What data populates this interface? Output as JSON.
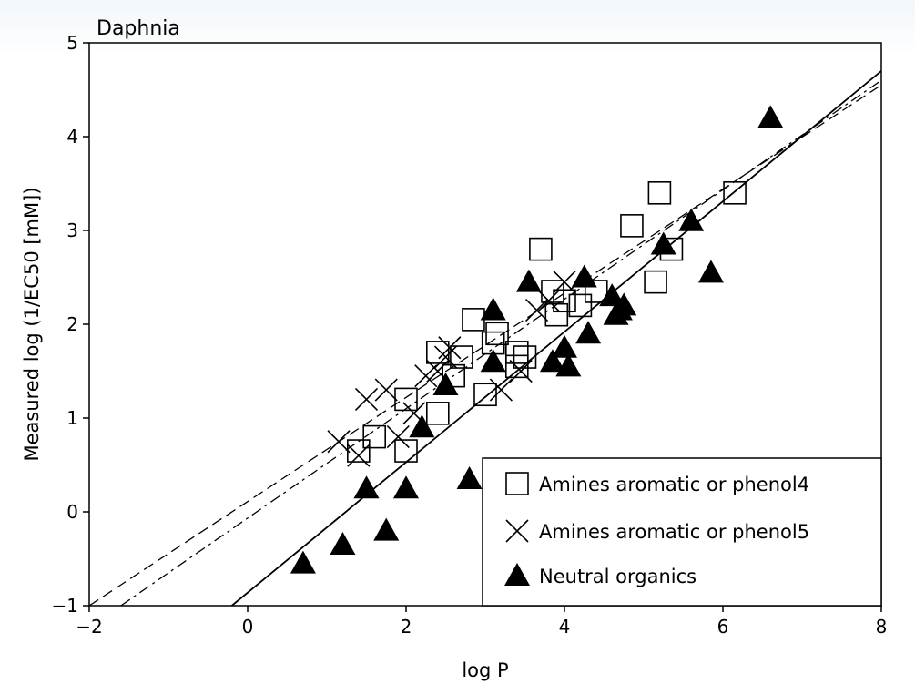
{
  "chart_data": {
    "type": "scatter",
    "title": "Daphnia",
    "xlabel": "log P",
    "ylabel": "Measured log (1/EC50 [mM])",
    "xlim": [
      -2,
      8
    ],
    "ylim": [
      -1,
      5
    ],
    "xticks": [
      "−2",
      "0",
      "2",
      "4",
      "6",
      "8"
    ],
    "yticks": [
      "−1",
      "0",
      "1",
      "2",
      "3",
      "4",
      "5"
    ],
    "xtick_values": [
      -2,
      0,
      2,
      4,
      6,
      8
    ],
    "ytick_values": [
      -1,
      0,
      1,
      2,
      3,
      4,
      5
    ],
    "grid": false,
    "legend_position": "bottom-right",
    "series": [
      {
        "name": "Amines aromatic or phenol4",
        "marker": "open-square",
        "points": [
          [
            1.4,
            0.65
          ],
          [
            1.6,
            0.8
          ],
          [
            2.0,
            0.65
          ],
          [
            2.0,
            1.2
          ],
          [
            2.4,
            1.05
          ],
          [
            2.4,
            1.7
          ],
          [
            2.6,
            1.45
          ],
          [
            2.7,
            1.65
          ],
          [
            2.85,
            2.05
          ],
          [
            3.0,
            1.25
          ],
          [
            3.1,
            1.8
          ],
          [
            3.15,
            1.9
          ],
          [
            3.4,
            1.55
          ],
          [
            3.4,
            1.7
          ],
          [
            3.5,
            1.65
          ],
          [
            3.7,
            2.8
          ],
          [
            3.85,
            2.35
          ],
          [
            3.9,
            2.1
          ],
          [
            4.0,
            2.25
          ],
          [
            4.2,
            2.2
          ],
          [
            4.4,
            2.35
          ],
          [
            4.85,
            3.05
          ],
          [
            5.15,
            2.45
          ],
          [
            5.2,
            3.4
          ],
          [
            5.35,
            2.8
          ],
          [
            6.15,
            3.4
          ]
        ]
      },
      {
        "name": "Amines aromatic or phenol5",
        "marker": "cross",
        "points": [
          [
            1.15,
            0.75
          ],
          [
            1.4,
            0.6
          ],
          [
            1.5,
            1.2
          ],
          [
            1.75,
            1.3
          ],
          [
            1.9,
            0.8
          ],
          [
            2.1,
            1.05
          ],
          [
            2.25,
            1.45
          ],
          [
            2.4,
            1.5
          ],
          [
            2.5,
            1.65
          ],
          [
            2.55,
            1.75
          ],
          [
            3.2,
            1.3
          ],
          [
            3.45,
            1.5
          ],
          [
            3.65,
            2.15
          ],
          [
            3.8,
            2.25
          ],
          [
            4.0,
            2.45
          ]
        ]
      },
      {
        "name": "Neutral organics",
        "marker": "filled-triangle",
        "points": [
          [
            0.7,
            -0.55
          ],
          [
            1.2,
            -0.35
          ],
          [
            1.5,
            0.25
          ],
          [
            1.75,
            -0.2
          ],
          [
            2.0,
            0.25
          ],
          [
            2.2,
            0.9
          ],
          [
            2.5,
            1.35
          ],
          [
            2.8,
            0.35
          ],
          [
            3.1,
            1.6
          ],
          [
            3.1,
            2.15
          ],
          [
            3.55,
            2.45
          ],
          [
            3.85,
            1.6
          ],
          [
            4.0,
            1.75
          ],
          [
            4.05,
            1.55
          ],
          [
            4.25,
            2.5
          ],
          [
            4.3,
            1.9
          ],
          [
            4.6,
            2.3
          ],
          [
            4.65,
            2.1
          ],
          [
            4.7,
            2.15
          ],
          [
            4.75,
            2.2
          ],
          [
            5.25,
            2.85
          ],
          [
            5.6,
            3.1
          ],
          [
            5.85,
            2.55
          ],
          [
            6.6,
            4.2
          ]
        ]
      }
    ],
    "fit_lines": [
      {
        "style": "solid",
        "x": [
          -0.2,
          8.0
        ],
        "y": [
          -1.0,
          4.7
        ]
      },
      {
        "style": "dashed",
        "x": [
          -2.0,
          8.0
        ],
        "y": [
          -1.0,
          4.55
        ]
      },
      {
        "style": "dash-dot",
        "x": [
          -1.6,
          8.0
        ],
        "y": [
          -1.0,
          4.6
        ]
      }
    ]
  }
}
